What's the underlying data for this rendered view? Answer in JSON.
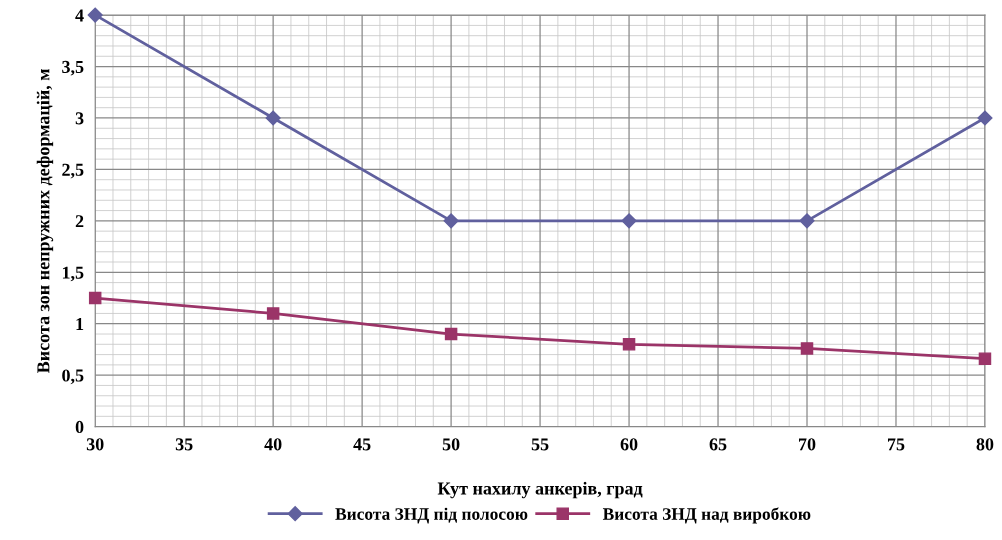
{
  "chart_data": {
    "type": "line",
    "xlabel": "Кут нахилу анкерів, град",
    "ylabel": "Висота зон непружних деформацій, м",
    "x": [
      30,
      40,
      50,
      60,
      70,
      80
    ],
    "series": [
      {
        "name": "Висота ЗНД під полосою",
        "color": "#60609e",
        "marker": "diamond",
        "values": [
          4,
          3,
          2,
          2,
          2,
          3
        ]
      },
      {
        "name": "Висота ЗНД над виробкою",
        "color": "#9b3468",
        "marker": "square",
        "values": [
          1.25,
          1.1,
          0.9,
          0.8,
          0.76,
          0.66
        ]
      }
    ],
    "xlim": [
      30,
      80
    ],
    "xticks": [
      30,
      35,
      40,
      45,
      50,
      55,
      60,
      65,
      70,
      75,
      80
    ],
    "ylim": [
      0,
      4
    ],
    "yticks": [
      0,
      {
        "value": 0.5,
        "label": "0,5"
      },
      1,
      {
        "value": 1.5,
        "label": "1,5"
      },
      2,
      {
        "value": 2.5,
        "label": "2,5"
      },
      3,
      {
        "value": 3.5,
        "label": "3,5"
      },
      4
    ],
    "grid": true,
    "legend": "bottom",
    "line_style": "solid"
  }
}
